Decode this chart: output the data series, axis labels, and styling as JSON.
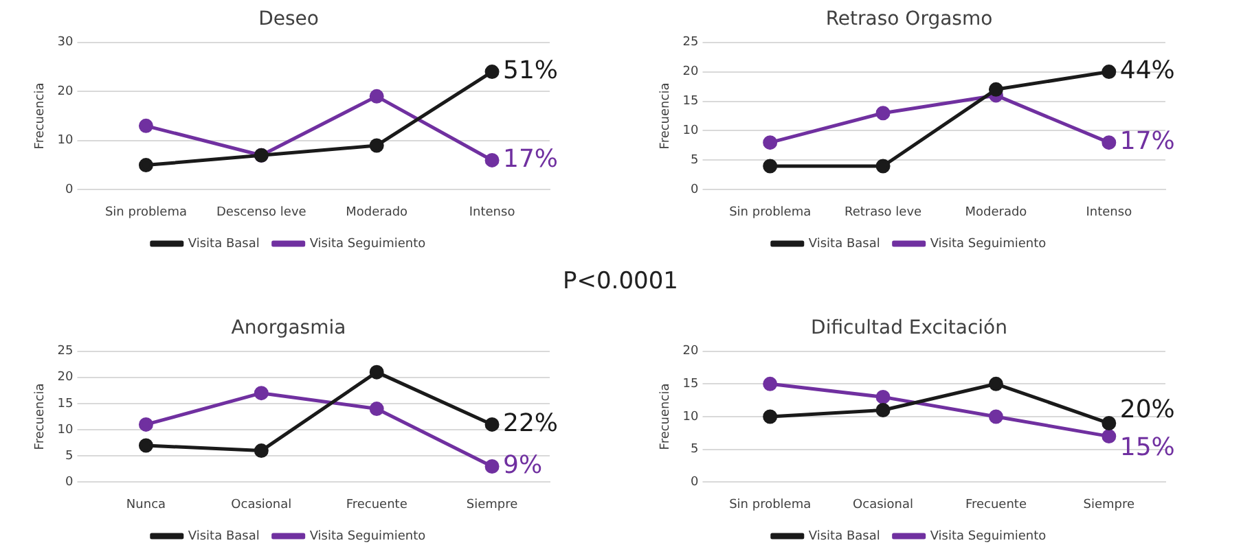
{
  "chart_data": [
    {
      "type": "line",
      "title": "Deseo",
      "ylabel": "Frecuencia",
      "categories": [
        "Sin problema",
        "Descenso leve",
        "Moderado",
        "Intenso"
      ],
      "ylim": [
        0,
        30
      ],
      "yticks": [
        0,
        10,
        20,
        30
      ],
      "grid": "y",
      "legend": "bottom",
      "marker": "circle",
      "series": [
        {
          "name": "Visita Basal",
          "color": "#1a1a1a",
          "values": [
            5,
            7,
            9,
            24
          ]
        },
        {
          "name": "Visita Seguimiento",
          "color": "#7030a0",
          "values": [
            13,
            7,
            19,
            6
          ]
        }
      ],
      "annotations": [
        {
          "text": "51%",
          "x": "Intenso",
          "y": 24
        },
        {
          "text": "17%",
          "x": "Intenso",
          "y": 6
        }
      ]
    },
    {
      "type": "line",
      "title": "Retraso Orgasmo",
      "ylabel": "Frecuencia",
      "categories": [
        "Sin problema",
        "Retraso leve",
        "Moderado",
        "Intenso"
      ],
      "ylim": [
        0,
        25
      ],
      "yticks": [
        0,
        5,
        10,
        15,
        20,
        25
      ],
      "grid": "y",
      "legend": "bottom",
      "marker": "circle",
      "series": [
        {
          "name": "Visita Basal",
          "color": "#1a1a1a",
          "values": [
            4,
            4,
            17,
            20
          ]
        },
        {
          "name": "Visita Seguimiento",
          "color": "#7030a0",
          "values": [
            8,
            13,
            16,
            8
          ]
        }
      ],
      "annotations": [
        {
          "text": "44%",
          "x": "Intenso",
          "y": 20
        },
        {
          "text": "17%",
          "x": "Intenso",
          "y": 8
        }
      ]
    },
    {
      "type": "other",
      "annotations": [
        "P<0.0001"
      ]
    },
    {
      "type": "line",
      "title": "Anorgasmia",
      "ylabel": "Frecuencia",
      "categories": [
        "Nunca",
        "Ocasional",
        "Frecuente",
        "Siempre"
      ],
      "ylim": [
        0,
        25
      ],
      "yticks": [
        0,
        5,
        10,
        15,
        20,
        25
      ],
      "grid": "y",
      "legend": "bottom",
      "marker": "circle",
      "series": [
        {
          "name": "Visita Basal",
          "color": "#1a1a1a",
          "values": [
            7,
            6,
            21,
            11
          ]
        },
        {
          "name": "Visita Seguimiento",
          "color": "#7030a0",
          "values": [
            11,
            17,
            14,
            3
          ]
        }
      ],
      "annotations": [
        {
          "text": "22%",
          "x": "Siempre",
          "y": 11
        },
        {
          "text": "9%",
          "x": "Siempre",
          "y": 3
        }
      ]
    },
    {
      "type": "line",
      "title": "Dificultad Excitación",
      "ylabel": "Frecuencia",
      "categories": [
        "Sin problema",
        "Ocasional",
        "Frecuente",
        "Siempre"
      ],
      "ylim": [
        0,
        20
      ],
      "yticks": [
        0,
        5,
        10,
        15,
        20
      ],
      "grid": "y",
      "legend": "bottom",
      "marker": "circle",
      "series": [
        {
          "name": "Visita Basal",
          "color": "#1a1a1a",
          "values": [
            10,
            11,
            15,
            9
          ]
        },
        {
          "name": "Visita Seguimiento",
          "color": "#7030a0",
          "values": [
            15,
            13,
            10,
            7
          ]
        }
      ],
      "annotations": [
        {
          "text": "20%",
          "x": "Siempre",
          "y": 9
        },
        {
          "text": "15%",
          "x": "Siempre",
          "y": 7
        }
      ]
    }
  ]
}
